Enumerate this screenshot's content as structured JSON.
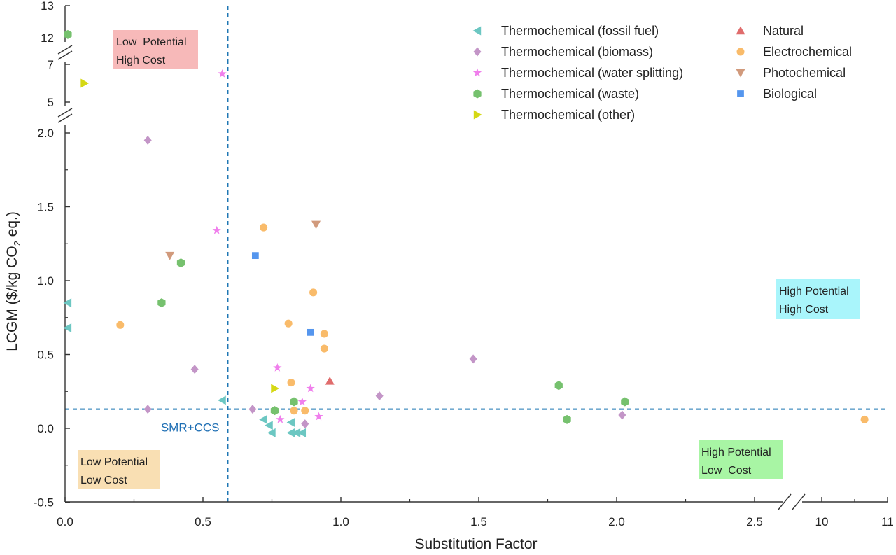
{
  "chart_data": {
    "type": "scatter",
    "xlabel": "Substitution Factor",
    "ylabel": "LCGM ($/kg CO",
    "ylabel_sub": "2",
    "ylabel_tail": " eq.)",
    "x_axis": {
      "segments": [
        {
          "range": [
            0,
            2.5
          ],
          "ticks": [
            0,
            0.5,
            1.0,
            1.5,
            2.0,
            2.5
          ],
          "labels": [
            "0.0",
            "0.5",
            "1.0",
            "1.5",
            "2.0",
            "2.5"
          ]
        },
        {
          "range": [
            10,
            11
          ],
          "ticks": [
            10,
            11
          ],
          "labels": [
            "10",
            "11"
          ]
        }
      ],
      "break": true
    },
    "y_axis": {
      "segments": [
        {
          "range": [
            -0.5,
            2.0
          ],
          "ticks": [
            -0.5,
            0.0,
            0.5,
            1.0,
            1.5,
            2.0
          ],
          "labels": [
            "-0.5",
            "0.0",
            "0.5",
            "1.0",
            "1.5",
            "2.0"
          ]
        },
        {
          "range": [
            5,
            7
          ],
          "ticks": [
            5,
            7
          ],
          "labels": [
            "5",
            "7"
          ]
        },
        {
          "range": [
            12,
            13
          ],
          "ticks": [
            12,
            13
          ],
          "labels": [
            "12",
            "13"
          ]
        }
      ],
      "break": true
    },
    "reference_lines": {
      "vertical_x": 0.59,
      "horizontal_y": 0.13,
      "label": "SMR+CCS"
    },
    "quadrant_labels": [
      {
        "id": "tl",
        "lines": [
          "Low  Potential",
          "High Cost"
        ],
        "color": "#f7b9b9"
      },
      {
        "id": "tr",
        "lines": [
          "High Potential",
          "High Cost"
        ],
        "color": "#a9f5fb"
      },
      {
        "id": "bl",
        "lines": [
          "Low Potential",
          "Low Cost"
        ],
        "color": "#f9dfb3"
      },
      {
        "id": "br",
        "lines": [
          "High Potential",
          "Low  Cost"
        ],
        "color": "#a8f5a4"
      }
    ],
    "legend_position": "top-right",
    "series": [
      {
        "name": "Thermochemical (fossil fuel)",
        "marker": "triangle-left",
        "color": "#6cc7c2",
        "points": [
          [
            0.01,
            0.85
          ],
          [
            0.01,
            0.68
          ],
          [
            0.57,
            0.19
          ],
          [
            0.72,
            0.06
          ],
          [
            0.74,
            0.02
          ],
          [
            0.75,
            -0.03
          ],
          [
            0.82,
            0.04
          ],
          [
            0.82,
            -0.03
          ],
          [
            0.84,
            -0.03
          ],
          [
            0.86,
            -0.03
          ]
        ]
      },
      {
        "name": "Thermochemical (biomass)",
        "marker": "diamond",
        "color": "#c395c7",
        "points": [
          [
            0.3,
            1.95
          ],
          [
            0.3,
            0.13
          ],
          [
            0.47,
            0.4
          ],
          [
            0.68,
            0.13
          ],
          [
            0.87,
            0.03
          ],
          [
            1.14,
            0.22
          ],
          [
            1.48,
            0.47
          ],
          [
            2.02,
            0.09
          ]
        ]
      },
      {
        "name": "Thermochemical (water splitting)",
        "marker": "star",
        "color": "#f07fec",
        "points": [
          [
            0.57,
            6.5
          ],
          [
            0.55,
            1.34
          ],
          [
            0.77,
            0.41
          ],
          [
            0.78,
            0.06
          ],
          [
            0.86,
            0.18
          ],
          [
            0.89,
            0.27
          ],
          [
            0.92,
            0.08
          ]
        ]
      },
      {
        "name": "Thermochemical (waste)",
        "marker": "hexagon",
        "color": "#76c16e",
        "points": [
          [
            0.01,
            12.1
          ],
          [
            0.42,
            1.12
          ],
          [
            0.35,
            0.85
          ],
          [
            0.76,
            0.12
          ],
          [
            0.83,
            0.18
          ],
          [
            1.79,
            0.29
          ],
          [
            1.82,
            0.06
          ],
          [
            2.03,
            0.18
          ]
        ]
      },
      {
        "name": "Thermochemical (other)",
        "marker": "triangle-right",
        "color": "#d5d814",
        "points": [
          [
            0.07,
            6.0
          ],
          [
            0.76,
            0.27
          ]
        ]
      },
      {
        "name": "Natural",
        "marker": "triangle-up",
        "color": "#e06c6c",
        "points": [
          [
            0.96,
            0.32
          ]
        ]
      },
      {
        "name": "Electrochemical",
        "marker": "circle",
        "color": "#f9bb6a",
        "points": [
          [
            0.2,
            0.7
          ],
          [
            0.72,
            1.36
          ],
          [
            0.81,
            0.71
          ],
          [
            0.82,
            0.31
          ],
          [
            0.83,
            0.12
          ],
          [
            0.87,
            0.12
          ],
          [
            0.9,
            0.92
          ],
          [
            0.94,
            0.64
          ],
          [
            0.94,
            0.54
          ],
          [
            10.65,
            0.06
          ]
        ]
      },
      {
        "name": "Photochemical",
        "marker": "triangle-down",
        "color": "#d19a7c",
        "points": [
          [
            0.38,
            1.17
          ],
          [
            0.91,
            1.38
          ]
        ]
      },
      {
        "name": "Biological",
        "marker": "square",
        "color": "#5596ee",
        "points": [
          [
            0.69,
            1.17
          ],
          [
            0.89,
            0.65
          ]
        ]
      }
    ]
  }
}
